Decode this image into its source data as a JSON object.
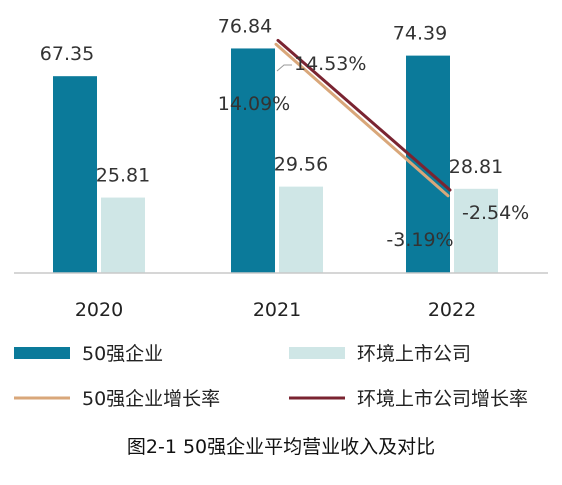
{
  "caption": "图2-1 50强企业平均营业收入及对比",
  "colors": {
    "bar_a": "#0b7a9a",
    "bar_b": "#cfe6e6",
    "line_a": "#d9a77a",
    "line_b": "#7a2431",
    "axis": "#c8c8c8"
  },
  "chart_data": {
    "type": "bar",
    "categories": [
      "2020",
      "2021",
      "2022"
    ],
    "series": [
      {
        "name": "50强企业",
        "kind": "bar",
        "values": [
          67.35,
          76.84,
          74.39
        ],
        "labels": [
          "67.35",
          "76.84",
          "74.39"
        ]
      },
      {
        "name": "环境上市公司",
        "kind": "bar",
        "values": [
          25.81,
          29.56,
          28.81
        ],
        "labels": [
          "25.81",
          "29.56",
          "28.81"
        ]
      },
      {
        "name": "50强企业增长率",
        "kind": "line",
        "axis": "secondary",
        "points": [
          {
            "x": "2021",
            "y": 14.09,
            "label": "14.09%"
          },
          {
            "x": "2022",
            "y": -3.19,
            "label": "-3.19%"
          }
        ]
      },
      {
        "name": "环境上市公司增长率",
        "kind": "line",
        "axis": "secondary",
        "points": [
          {
            "x": "2021",
            "y": 14.53,
            "label": "14.53%"
          },
          {
            "x": "2022",
            "y": -2.54,
            "label": "-2.54%"
          }
        ]
      }
    ],
    "ylim": [
      0,
      90
    ],
    "y2lim": [
      -12,
      18
    ],
    "grid": false,
    "legend": "bottom"
  }
}
